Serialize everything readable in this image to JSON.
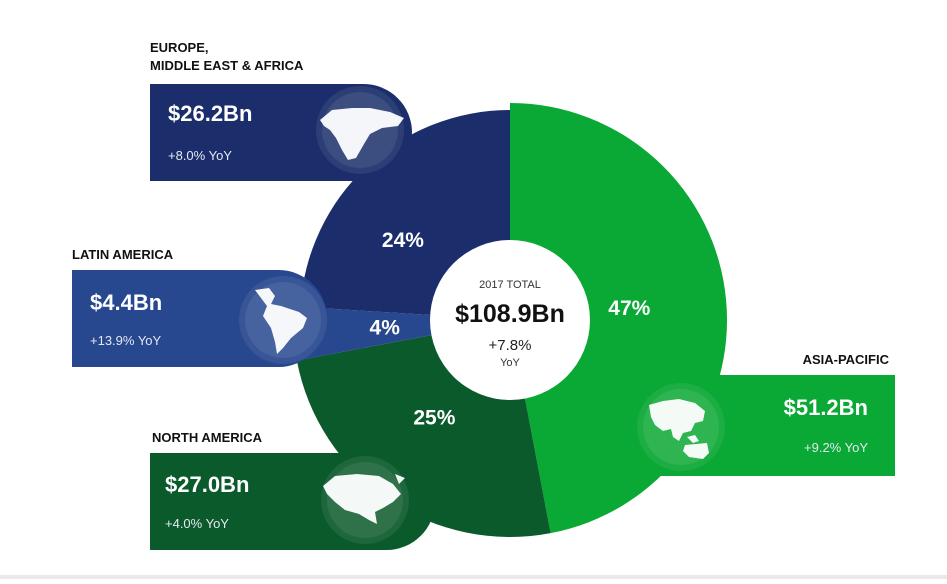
{
  "chart_data": {
    "type": "pie",
    "title": "2017 TOTAL",
    "total": {
      "label": "2017 TOTAL",
      "value": "$108.9Bn",
      "growth": "+7.8%",
      "growth_unit": "YoY"
    },
    "categories": [
      "ASIA-PACIFIC",
      "NORTH AMERICA",
      "LATIN AMERICA",
      "EUROPE, MIDDLE EAST & AFRICA"
    ],
    "values": [
      47,
      25,
      4,
      24
    ],
    "value_labels": [
      "47%",
      "25%",
      "4%",
      "24%"
    ],
    "amounts": [
      "$51.2Bn",
      "$27.0Bn",
      "$4.4Bn",
      "$26.2Bn"
    ],
    "yoy": [
      "+9.2% YoY",
      "+4.0% YoY",
      "+13.9% YoY",
      "+8.0% YoY"
    ],
    "region_title_lines": [
      [
        "ASIA-PACIFIC"
      ],
      [
        "NORTH AMERICA"
      ],
      [
        "LATIN AMERICA"
      ],
      [
        "EUROPE,",
        "MIDDLE EAST & AFRICA"
      ]
    ],
    "region_icons": [
      "asia-pacific-map-icon",
      "north-america-map-icon",
      "latin-america-map-icon",
      "europe-africa-map-icon"
    ],
    "colors": [
      "#0aa834",
      "#0b5a2b",
      "#27478f",
      "#1b2e6b"
    ],
    "panel_colors": [
      "#0aa834",
      "#0b5a2b",
      "#27478f",
      "#1b2e6b"
    ],
    "start_angle_deg": 0,
    "direction": "clockwise",
    "legend": "callout panels"
  }
}
